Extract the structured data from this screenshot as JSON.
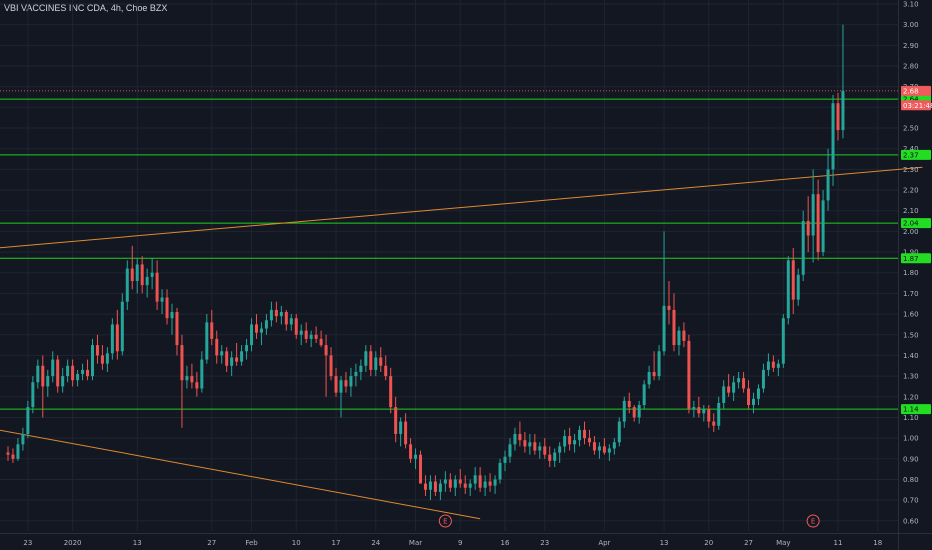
{
  "header": {
    "title": "VBI VACCINES INC CDA, 4h, Choe BZX"
  },
  "colors": {
    "background": "#131722",
    "grid": "#1f2431",
    "up": "#26a69a",
    "down": "#ef5350",
    "support_line": "#1fcf1f",
    "trend_line": "#e08a2e",
    "current_price_tag": "#f05a5a",
    "timer_tag": "#f05a5a",
    "level_tag": "#22dd22"
  },
  "chart_data": {
    "type": "candlestick",
    "title": "VBI VACCINES INC CDA, 4h, Choe BZX",
    "ylim": [
      0.57,
      3.1
    ],
    "y_ticks": [
      "3.10",
      "3.00",
      "2.90",
      "2.80",
      "2.70",
      "2.60",
      "2.50",
      "2.40",
      "2.30",
      "2.20",
      "2.10",
      "2.00",
      "1.90",
      "1.80",
      "1.70",
      "1.60",
      "1.50",
      "1.40",
      "1.30",
      "1.20",
      "1.10",
      "1.00",
      "0.90",
      "0.80",
      "0.70",
      "0.60"
    ],
    "x_ticks": [
      {
        "label": "23",
        "bar": 4
      },
      {
        "label": "2020",
        "bar": 13
      },
      {
        "label": "13",
        "bar": 26
      },
      {
        "label": "27",
        "bar": 41
      },
      {
        "label": "Feb",
        "bar": 49
      },
      {
        "label": "10",
        "bar": 58
      },
      {
        "label": "17",
        "bar": 66
      },
      {
        "label": "24",
        "bar": 74
      },
      {
        "label": "Mar",
        "bar": 82
      },
      {
        "label": "9",
        "bar": 91
      },
      {
        "label": "16",
        "bar": 100
      },
      {
        "label": "23",
        "bar": 108
      },
      {
        "label": "Apr",
        "bar": 120
      },
      {
        "label": "13",
        "bar": 132
      },
      {
        "label": "20",
        "bar": 141
      },
      {
        "label": "27",
        "bar": 149
      },
      {
        "label": "May",
        "bar": 156
      },
      {
        "label": "11",
        "bar": 167
      },
      {
        "label": "18",
        "bar": 175
      }
    ],
    "horizontal_levels": [
      {
        "value": 2.64,
        "label": "2.64"
      },
      {
        "value": 2.37,
        "label": "2.37"
      },
      {
        "value": 2.04,
        "label": "2.04"
      },
      {
        "value": 1.87,
        "label": "1.87"
      },
      {
        "value": 1.14,
        "label": "1.14"
      }
    ],
    "trend_lines": [
      {
        "from": {
          "bar": -2,
          "value": 1.92
        },
        "to": {
          "bar": 184,
          "value": 2.31
        }
      },
      {
        "from": {
          "bar": -2,
          "value": 1.04
        },
        "to": {
          "bar": 95,
          "value": 0.61
        }
      }
    ],
    "current_price": {
      "value": 2.68,
      "label": "2.68"
    },
    "countdown": {
      "value": 2.61,
      "label": "03:21:48"
    },
    "earnings_markers": [
      {
        "bar": 88,
        "label": "E"
      },
      {
        "bar": 162,
        "label": "E"
      }
    ],
    "candles": [
      [
        0.93,
        0.96,
        0.89,
        0.92
      ],
      [
        0.92,
        0.95,
        0.88,
        0.9
      ],
      [
        0.9,
        1.0,
        0.89,
        0.97
      ],
      [
        0.97,
        1.05,
        0.94,
        1.02
      ],
      [
        1.02,
        1.18,
        1.0,
        1.15
      ],
      [
        1.15,
        1.3,
        1.12,
        1.27
      ],
      [
        1.27,
        1.38,
        1.24,
        1.35
      ],
      [
        1.35,
        1.4,
        1.1,
        1.25
      ],
      [
        1.25,
        1.33,
        1.2,
        1.3
      ],
      [
        1.3,
        1.42,
        1.27,
        1.38
      ],
      [
        1.38,
        1.4,
        1.22,
        1.25
      ],
      [
        1.25,
        1.34,
        1.22,
        1.3
      ],
      [
        1.3,
        1.38,
        1.27,
        1.35
      ],
      [
        1.35,
        1.38,
        1.25,
        1.28
      ],
      [
        1.28,
        1.33,
        1.25,
        1.31
      ],
      [
        1.31,
        1.36,
        1.28,
        1.33
      ],
      [
        1.33,
        1.38,
        1.28,
        1.3
      ],
      [
        1.3,
        1.48,
        1.28,
        1.45
      ],
      [
        1.45,
        1.5,
        1.36,
        1.4
      ],
      [
        1.4,
        1.45,
        1.33,
        1.36
      ],
      [
        1.36,
        1.44,
        1.32,
        1.41
      ],
      [
        1.41,
        1.58,
        1.38,
        1.55
      ],
      [
        1.55,
        1.62,
        1.38,
        1.42
      ],
      [
        1.42,
        1.7,
        1.4,
        1.66
      ],
      [
        1.66,
        1.86,
        1.62,
        1.82
      ],
      [
        1.82,
        1.93,
        1.72,
        1.76
      ],
      [
        1.76,
        1.87,
        1.7,
        1.84
      ],
      [
        1.84,
        1.88,
        1.7,
        1.74
      ],
      [
        1.74,
        1.82,
        1.68,
        1.78
      ],
      [
        1.78,
        1.87,
        1.72,
        1.8
      ],
      [
        1.8,
        1.86,
        1.62,
        1.66
      ],
      [
        1.66,
        1.72,
        1.6,
        1.68
      ],
      [
        1.68,
        1.72,
        1.55,
        1.58
      ],
      [
        1.58,
        1.65,
        1.5,
        1.61
      ],
      [
        1.61,
        1.63,
        1.4,
        1.45
      ],
      [
        1.45,
        1.5,
        1.05,
        1.28
      ],
      [
        1.28,
        1.35,
        1.24,
        1.3
      ],
      [
        1.3,
        1.36,
        1.24,
        1.27
      ],
      [
        1.27,
        1.32,
        1.2,
        1.24
      ],
      [
        1.24,
        1.42,
        1.22,
        1.38
      ],
      [
        1.38,
        1.6,
        1.36,
        1.56
      ],
      [
        1.56,
        1.62,
        1.45,
        1.48
      ],
      [
        1.48,
        1.52,
        1.36,
        1.4
      ],
      [
        1.4,
        1.45,
        1.36,
        1.42
      ],
      [
        1.42,
        1.44,
        1.32,
        1.35
      ],
      [
        1.35,
        1.42,
        1.3,
        1.39
      ],
      [
        1.39,
        1.46,
        1.35,
        1.37
      ],
      [
        1.37,
        1.45,
        1.35,
        1.42
      ],
      [
        1.42,
        1.48,
        1.38,
        1.45
      ],
      [
        1.45,
        1.58,
        1.42,
        1.55
      ],
      [
        1.55,
        1.6,
        1.48,
        1.51
      ],
      [
        1.51,
        1.56,
        1.45,
        1.53
      ],
      [
        1.53,
        1.6,
        1.5,
        1.57
      ],
      [
        1.57,
        1.66,
        1.54,
        1.62
      ],
      [
        1.62,
        1.66,
        1.56,
        1.59
      ],
      [
        1.59,
        1.64,
        1.55,
        1.61
      ],
      [
        1.61,
        1.62,
        1.52,
        1.55
      ],
      [
        1.55,
        1.6,
        1.52,
        1.58
      ],
      [
        1.58,
        1.6,
        1.48,
        1.5
      ],
      [
        1.5,
        1.55,
        1.45,
        1.52
      ],
      [
        1.52,
        1.56,
        1.46,
        1.48
      ],
      [
        1.48,
        1.52,
        1.44,
        1.5
      ],
      [
        1.5,
        1.54,
        1.46,
        1.48
      ],
      [
        1.48,
        1.52,
        1.44,
        1.45
      ],
      [
        1.45,
        1.5,
        1.2,
        1.4
      ],
      [
        1.4,
        1.44,
        1.28,
        1.3
      ],
      [
        1.3,
        1.34,
        1.2,
        1.22
      ],
      [
        1.22,
        1.3,
        1.1,
        1.28
      ],
      [
        1.28,
        1.32,
        1.22,
        1.25
      ],
      [
        1.25,
        1.34,
        1.2,
        1.3
      ],
      [
        1.3,
        1.36,
        1.25,
        1.32
      ],
      [
        1.32,
        1.38,
        1.28,
        1.35
      ],
      [
        1.35,
        1.45,
        1.32,
        1.42
      ],
      [
        1.42,
        1.45,
        1.3,
        1.33
      ],
      [
        1.33,
        1.42,
        1.3,
        1.39
      ],
      [
        1.39,
        1.44,
        1.32,
        1.35
      ],
      [
        1.35,
        1.4,
        1.28,
        1.3
      ],
      [
        1.3,
        1.34,
        1.12,
        1.15
      ],
      [
        1.15,
        1.2,
        0.98,
        1.02
      ],
      [
        1.02,
        1.1,
        0.96,
        1.08
      ],
      [
        1.08,
        1.12,
        0.95,
        0.97
      ],
      [
        0.97,
        1.0,
        0.88,
        0.9
      ],
      [
        0.9,
        0.95,
        0.85,
        0.92
      ],
      [
        0.92,
        0.94,
        0.8,
        0.78
      ],
      [
        0.78,
        0.82,
        0.72,
        0.75
      ],
      [
        0.75,
        0.82,
        0.7,
        0.79
      ],
      [
        0.79,
        0.82,
        0.72,
        0.74
      ],
      [
        0.74,
        0.8,
        0.7,
        0.78
      ],
      [
        0.78,
        0.84,
        0.74,
        0.8
      ],
      [
        0.8,
        0.83,
        0.74,
        0.76
      ],
      [
        0.76,
        0.82,
        0.72,
        0.8
      ],
      [
        0.8,
        0.85,
        0.76,
        0.78
      ],
      [
        0.78,
        0.82,
        0.73,
        0.76
      ],
      [
        0.76,
        0.8,
        0.72,
        0.78
      ],
      [
        0.78,
        0.86,
        0.75,
        0.82
      ],
      [
        0.82,
        0.86,
        0.74,
        0.76
      ],
      [
        0.76,
        0.82,
        0.72,
        0.79
      ],
      [
        0.79,
        0.83,
        0.74,
        0.77
      ],
      [
        0.77,
        0.82,
        0.73,
        0.8
      ],
      [
        0.8,
        0.9,
        0.78,
        0.88
      ],
      [
        0.88,
        0.94,
        0.84,
        0.91
      ],
      [
        0.91,
        1.0,
        0.88,
        0.97
      ],
      [
        0.97,
        1.05,
        0.94,
        1.02
      ],
      [
        1.02,
        1.08,
        0.96,
        0.99
      ],
      [
        0.99,
        1.03,
        0.93,
        0.96
      ],
      [
        0.96,
        1.02,
        0.92,
        0.98
      ],
      [
        0.98,
        1.02,
        0.92,
        0.94
      ],
      [
        0.94,
        0.98,
        0.9,
        0.96
      ],
      [
        0.96,
        1.0,
        0.9,
        0.92
      ],
      [
        0.92,
        0.96,
        0.86,
        0.89
      ],
      [
        0.89,
        0.95,
        0.86,
        0.93
      ],
      [
        0.93,
        0.98,
        0.88,
        0.96
      ],
      [
        0.96,
        1.04,
        0.93,
        1.01
      ],
      [
        1.01,
        1.05,
        0.94,
        0.97
      ],
      [
        0.97,
        1.02,
        0.93,
        0.99
      ],
      [
        0.99,
        1.06,
        0.96,
        1.04
      ],
      [
        1.04,
        1.08,
        0.97,
        1.0
      ],
      [
        1.0,
        1.04,
        0.96,
        0.98
      ],
      [
        0.98,
        1.01,
        0.92,
        0.94
      ],
      [
        0.94,
        0.98,
        0.9,
        0.96
      ],
      [
        0.96,
        1.0,
        0.92,
        0.93
      ],
      [
        0.93,
        0.97,
        0.89,
        0.95
      ],
      [
        0.95,
        1.0,
        0.92,
        0.98
      ],
      [
        0.98,
        1.1,
        0.96,
        1.08
      ],
      [
        1.08,
        1.2,
        1.05,
        1.18
      ],
      [
        1.18,
        1.22,
        1.12,
        1.15
      ],
      [
        1.15,
        1.16,
        1.08,
        1.1
      ],
      [
        1.1,
        1.18,
        1.07,
        1.16
      ],
      [
        1.16,
        1.28,
        1.14,
        1.26
      ],
      [
        1.26,
        1.35,
        1.24,
        1.32
      ],
      [
        1.32,
        1.42,
        1.28,
        1.3
      ],
      [
        1.3,
        1.45,
        1.28,
        1.42
      ],
      [
        1.42,
        2.0,
        1.4,
        1.64
      ],
      [
        1.64,
        1.76,
        1.55,
        1.62
      ],
      [
        1.62,
        1.7,
        1.42,
        1.45
      ],
      [
        1.45,
        1.54,
        1.4,
        1.52
      ],
      [
        1.52,
        1.56,
        1.44,
        1.47
      ],
      [
        1.47,
        1.5,
        1.12,
        1.14
      ],
      [
        1.14,
        1.18,
        1.1,
        1.15
      ],
      [
        1.15,
        1.2,
        1.1,
        1.12
      ],
      [
        1.12,
        1.16,
        1.08,
        1.14
      ],
      [
        1.14,
        1.16,
        1.05,
        1.08
      ],
      [
        1.08,
        1.12,
        1.03,
        1.06
      ],
      [
        1.06,
        1.2,
        1.04,
        1.17
      ],
      [
        1.17,
        1.28,
        1.14,
        1.25
      ],
      [
        1.25,
        1.31,
        1.2,
        1.22
      ],
      [
        1.22,
        1.3,
        1.18,
        1.27
      ],
      [
        1.27,
        1.32,
        1.24,
        1.29
      ],
      [
        1.29,
        1.32,
        1.22,
        1.24
      ],
      [
        1.24,
        1.28,
        1.14,
        1.16
      ],
      [
        1.16,
        1.22,
        1.12,
        1.19
      ],
      [
        1.19,
        1.26,
        1.16,
        1.24
      ],
      [
        1.24,
        1.36,
        1.22,
        1.33
      ],
      [
        1.33,
        1.41,
        1.3,
        1.37
      ],
      [
        1.37,
        1.4,
        1.32,
        1.34
      ],
      [
        1.34,
        1.38,
        1.3,
        1.36
      ],
      [
        1.36,
        1.6,
        1.34,
        1.58
      ],
      [
        1.58,
        1.88,
        1.55,
        1.86
      ],
      [
        1.86,
        1.92,
        1.6,
        1.67
      ],
      [
        1.67,
        1.82,
        1.64,
        1.79
      ],
      [
        1.79,
        2.1,
        1.76,
        2.05
      ],
      [
        2.05,
        2.17,
        1.9,
        1.98
      ],
      [
        1.98,
        2.3,
        1.85,
        2.18
      ],
      [
        2.18,
        2.25,
        1.86,
        1.9
      ],
      [
        1.9,
        2.2,
        1.88,
        2.15
      ],
      [
        2.15,
        2.4,
        2.1,
        2.3
      ],
      [
        2.3,
        2.66,
        2.22,
        2.62
      ],
      [
        2.62,
        2.67,
        2.44,
        2.49
      ],
      [
        2.49,
        3.0,
        2.45,
        2.68
      ]
    ]
  }
}
